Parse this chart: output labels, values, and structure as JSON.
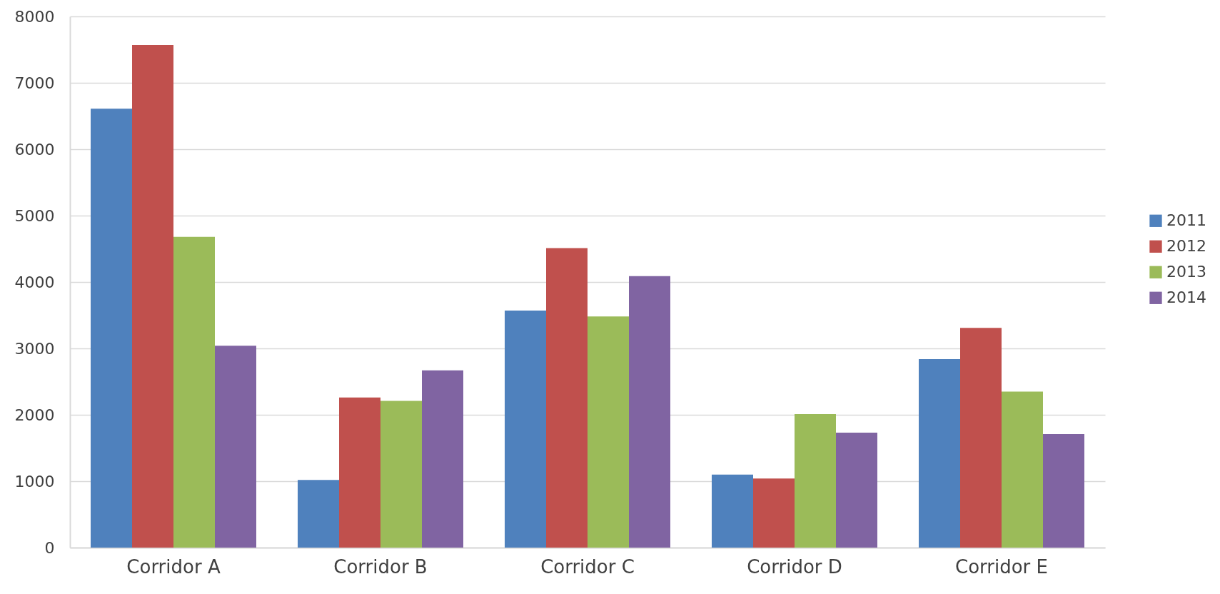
{
  "chart_data": {
    "type": "bar",
    "categories": [
      "Corridor A",
      "Corridor B",
      "Corridor C",
      "Corridor D",
      "Corridor E"
    ],
    "series": [
      {
        "name": "2011",
        "color": "#4f81bd",
        "values": [
          6610,
          1020,
          3570,
          1100,
          2840
        ]
      },
      {
        "name": "2012",
        "color": "#c0504d",
        "values": [
          7570,
          2260,
          4510,
          1040,
          3310
        ]
      },
      {
        "name": "2013",
        "color": "#9bbb59",
        "values": [
          4680,
          2210,
          3480,
          2010,
          2350
        ]
      },
      {
        "name": "2014",
        "color": "#8064a2",
        "values": [
          3040,
          2670,
          4090,
          1730,
          1710
        ]
      }
    ],
    "ylim": [
      0,
      8000
    ],
    "yticks": [
      0,
      1000,
      2000,
      3000,
      4000,
      5000,
      6000,
      7000,
      8000
    ],
    "grid": "y",
    "legend": "right"
  }
}
